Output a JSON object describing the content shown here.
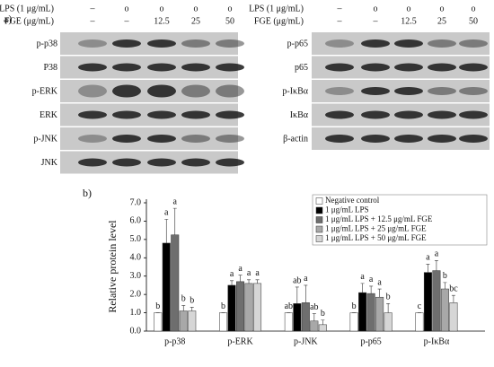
{
  "panel_a": {
    "label": "a)",
    "left": {
      "lps_label": "LPS (1 μg/mL)",
      "fge_label": "FGE (μg/mL)",
      "lps": [
        "–",
        "o",
        "o",
        "o",
        "o"
      ],
      "fge": [
        "–",
        "–",
        "12.5",
        "25",
        "50"
      ],
      "rows": [
        "p-p38",
        "P38",
        "p-ERK",
        "ERK",
        "p-JNK",
        "JNK"
      ]
    },
    "right": {
      "lps_label": "LPS (1 μg/mL)",
      "fge_label": "FGE (μg/mL)",
      "lps": [
        "–",
        "o",
        "o",
        "o",
        "o"
      ],
      "fge": [
        "–",
        "–",
        "12.5",
        "25",
        "50"
      ],
      "rows": [
        "p-p65",
        "p65",
        "p-IκBα",
        "IκBα",
        "β-actin"
      ]
    }
  },
  "chart_data": {
    "type": "bar",
    "panel_label": "b)",
    "ylabel": "Relative protein level",
    "categories": [
      "p-p38",
      "p-ERK",
      "p-JNK",
      "p-p65",
      "p-IκBα"
    ],
    "series": [
      {
        "name": "Negative control",
        "color": "#ffffff",
        "values": [
          1.0,
          1.0,
          1.0,
          1.0,
          1.0
        ],
        "errors": [
          0,
          0,
          0,
          0,
          0
        ],
        "letters": [
          "b",
          "b",
          "ab",
          "b",
          "c"
        ]
      },
      {
        "name": "1 μg/mL LPS",
        "color": "#000000",
        "values": [
          4.8,
          2.5,
          1.5,
          2.1,
          3.2
        ],
        "errors": [
          1.3,
          0.25,
          0.9,
          0.5,
          0.45
        ],
        "letters": [
          "a",
          "a",
          "ab",
          "a",
          "a"
        ]
      },
      {
        "name": "1 μg/mL LPS + 12.5 μg/mL FGE",
        "color": "#6e6e6e",
        "values": [
          5.25,
          2.7,
          1.55,
          2.05,
          3.3
        ],
        "errors": [
          1.45,
          0.35,
          0.95,
          0.4,
          0.55
        ],
        "letters": [
          "a",
          "a",
          "a",
          "a",
          "a"
        ]
      },
      {
        "name": "1 μg/mL LPS + 25 μg/mL FGE",
        "color": "#a8a8a8",
        "values": [
          1.1,
          2.6,
          0.55,
          1.85,
          2.3
        ],
        "errors": [
          0.3,
          0.2,
          0.4,
          0.45,
          0.35
        ],
        "letters": [
          "b",
          "a",
          "ab",
          "a",
          "b"
        ]
      },
      {
        "name": "1 μg/mL LPS + 50 μg/mL FGE",
        "color": "#d6d6d6",
        "values": [
          1.1,
          2.6,
          0.35,
          1.0,
          1.55
        ],
        "errors": [
          0.2,
          0.2,
          0.25,
          0.5,
          0.4
        ],
        "letters": [
          "b",
          "a",
          "b",
          "b",
          "bc"
        ]
      }
    ],
    "ylim": [
      0,
      7
    ],
    "yticks": [
      {
        "value": 0,
        "label": "0.0"
      },
      {
        "value": 1,
        "label": "1.0"
      },
      {
        "value": 2,
        "label": "2.0"
      },
      {
        "value": 3,
        "label": "3.0"
      },
      {
        "value": 4,
        "label": "4.0"
      },
      {
        "value": 5,
        "label": "5.0"
      },
      {
        "value": 6,
        "label": "6.0"
      },
      {
        "value": 7,
        "label": "7.0"
      }
    ]
  }
}
